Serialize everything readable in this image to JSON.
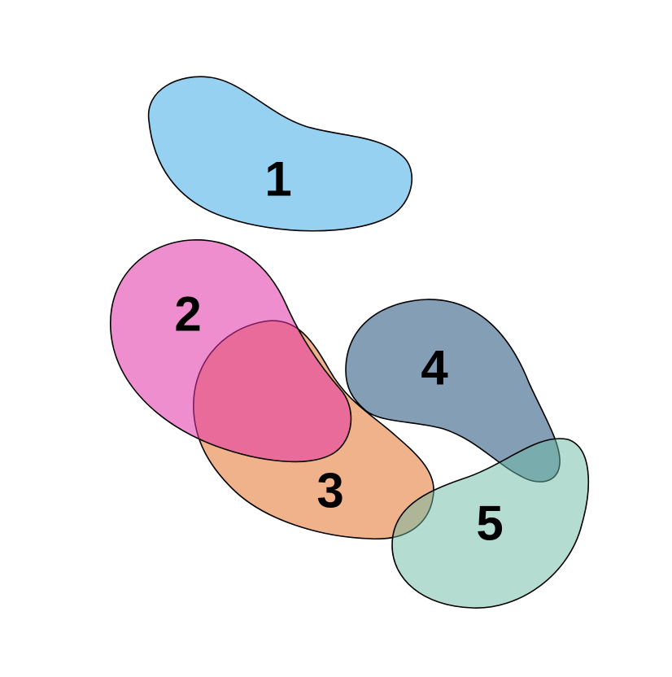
{
  "diagram": {
    "sets": [
      {
        "label": "1",
        "color": "#56B4E9"
      },
      {
        "label": "2",
        "color": "#E231A7"
      },
      {
        "label": "3",
        "color": "#E67E3C"
      },
      {
        "label": "4",
        "color": "#1F4E7A"
      },
      {
        "label": "5",
        "color": "#6BB9A3"
      }
    ]
  }
}
